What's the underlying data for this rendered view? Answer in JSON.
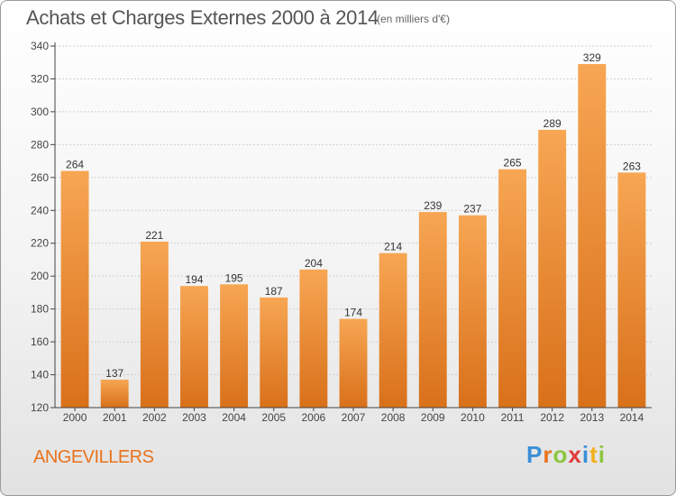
{
  "header": {
    "title": "Achats et Charges Externes 2000 à 2014",
    "unit": "(en milliers d'€)"
  },
  "footer": {
    "city": "ANGEVILLERS",
    "logo_letters": [
      {
        "ch": "P",
        "color": "#3a8fd6"
      },
      {
        "ch": "r",
        "color": "#e8731d"
      },
      {
        "ch": "o",
        "color": "#8cc63f"
      },
      {
        "ch": "x",
        "color": "#e03a3a"
      },
      {
        "ch": "i",
        "color": "#3a8fd6"
      },
      {
        "ch": "t",
        "color": "#f2b01e"
      },
      {
        "ch": "i",
        "color": "#8cc63f"
      }
    ]
  },
  "colors": {
    "bar_light": "#f7a653",
    "bar_dark": "#d9701a",
    "grid": "#cfcfcf",
    "axis": "#444444"
  },
  "chart_data": {
    "type": "bar",
    "title": "Achats et Charges Externes 2000 à 2014",
    "subtitle": "(en milliers d'€)",
    "categories": [
      "2000",
      "2001",
      "2002",
      "2003",
      "2004",
      "2005",
      "2006",
      "2007",
      "2008",
      "2009",
      "2010",
      "2011",
      "2012",
      "2013",
      "2014"
    ],
    "values": [
      264,
      137,
      221,
      194,
      195,
      187,
      204,
      174,
      214,
      239,
      237,
      265,
      289,
      329,
      263
    ],
    "yticks": [
      120,
      140,
      160,
      180,
      200,
      220,
      240,
      260,
      280,
      300,
      320,
      340
    ],
    "ylim": [
      120,
      340
    ],
    "grid": true,
    "show_value_labels": true
  }
}
